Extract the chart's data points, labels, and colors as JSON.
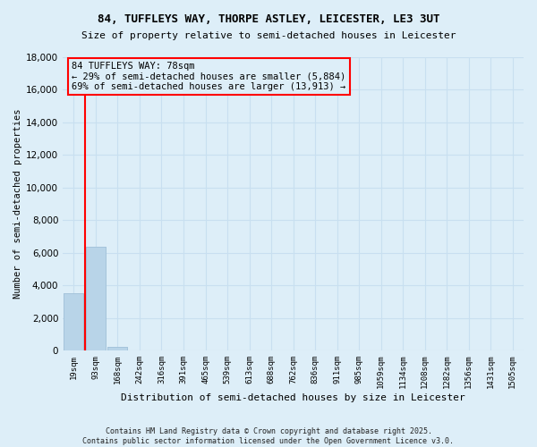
{
  "title": "84, TUFFLEYS WAY, THORPE ASTLEY, LEICESTER, LE3 3UT",
  "subtitle": "Size of property relative to semi-detached houses in Leicester",
  "xlabel": "Distribution of semi-detached houses by size in Leicester",
  "ylabel": "Number of semi-detached properties",
  "categories": [
    "19sqm",
    "93sqm",
    "168sqm",
    "242sqm",
    "316sqm",
    "391sqm",
    "465sqm",
    "539sqm",
    "613sqm",
    "688sqm",
    "762sqm",
    "836sqm",
    "911sqm",
    "985sqm",
    "1059sqm",
    "1134sqm",
    "1208sqm",
    "1282sqm",
    "1356sqm",
    "1431sqm",
    "1505sqm"
  ],
  "bar_values": [
    3500,
    6350,
    200,
    0,
    0,
    0,
    0,
    0,
    0,
    0,
    0,
    0,
    0,
    0,
    0,
    0,
    0,
    0,
    0,
    0,
    0
  ],
  "bar_color": "#b8d4e8",
  "ylim": [
    0,
    18000
  ],
  "yticks": [
    0,
    2000,
    4000,
    6000,
    8000,
    10000,
    12000,
    14000,
    16000,
    18000
  ],
  "property_line_x": 0.5,
  "annotation_text": "84 TUFFLEYS WAY: 78sqm\n← 29% of semi-detached houses are smaller (5,884)\n69% of semi-detached houses are larger (13,913) →",
  "footer": "Contains HM Land Registry data © Crown copyright and database right 2025.\nContains public sector information licensed under the Open Government Licence v3.0.",
  "bg_color": "#ddeef8",
  "grid_color": "#c8dff0"
}
